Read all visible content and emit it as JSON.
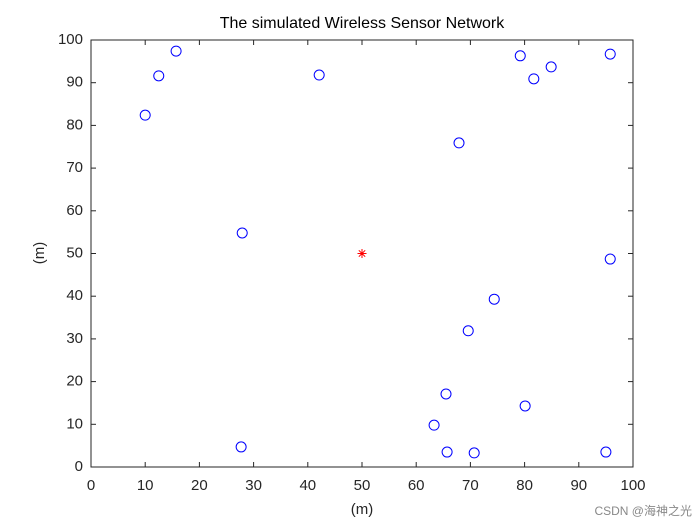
{
  "chart_data": {
    "type": "scatter",
    "title": "The simulated Wireless Sensor Network",
    "xlabel": "(m)",
    "ylabel": "(m)",
    "xlim": [
      0,
      100
    ],
    "ylim": [
      0,
      100
    ],
    "xticks": [
      0,
      10,
      20,
      30,
      40,
      50,
      60,
      70,
      80,
      90,
      100
    ],
    "yticks": [
      0,
      10,
      20,
      30,
      40,
      50,
      60,
      70,
      80,
      90,
      100
    ],
    "series": [
      {
        "color": "#0000ff",
        "marker": "o",
        "x": [
          10,
          12.5,
          15.7,
          27.9,
          27.7,
          42.1,
          67.9,
          79.2,
          81.7,
          84.9,
          95.8,
          95.8,
          74.4,
          69.6,
          65.5,
          80.1,
          63.3,
          65.7,
          70.7,
          95.0
        ],
        "values": [
          82.4,
          91.6,
          97.4,
          54.8,
          4.7,
          91.8,
          75.9,
          96.3,
          90.9,
          93.7,
          96.7,
          48.7,
          39.3,
          31.9,
          17.1,
          14.3,
          9.8,
          3.5,
          3.3,
          3.5
        ]
      },
      {
        "color": "#ff0000",
        "marker": "*",
        "x": [
          50
        ],
        "values": [
          50
        ]
      }
    ],
    "watermark": "CSDN @海神之光"
  }
}
